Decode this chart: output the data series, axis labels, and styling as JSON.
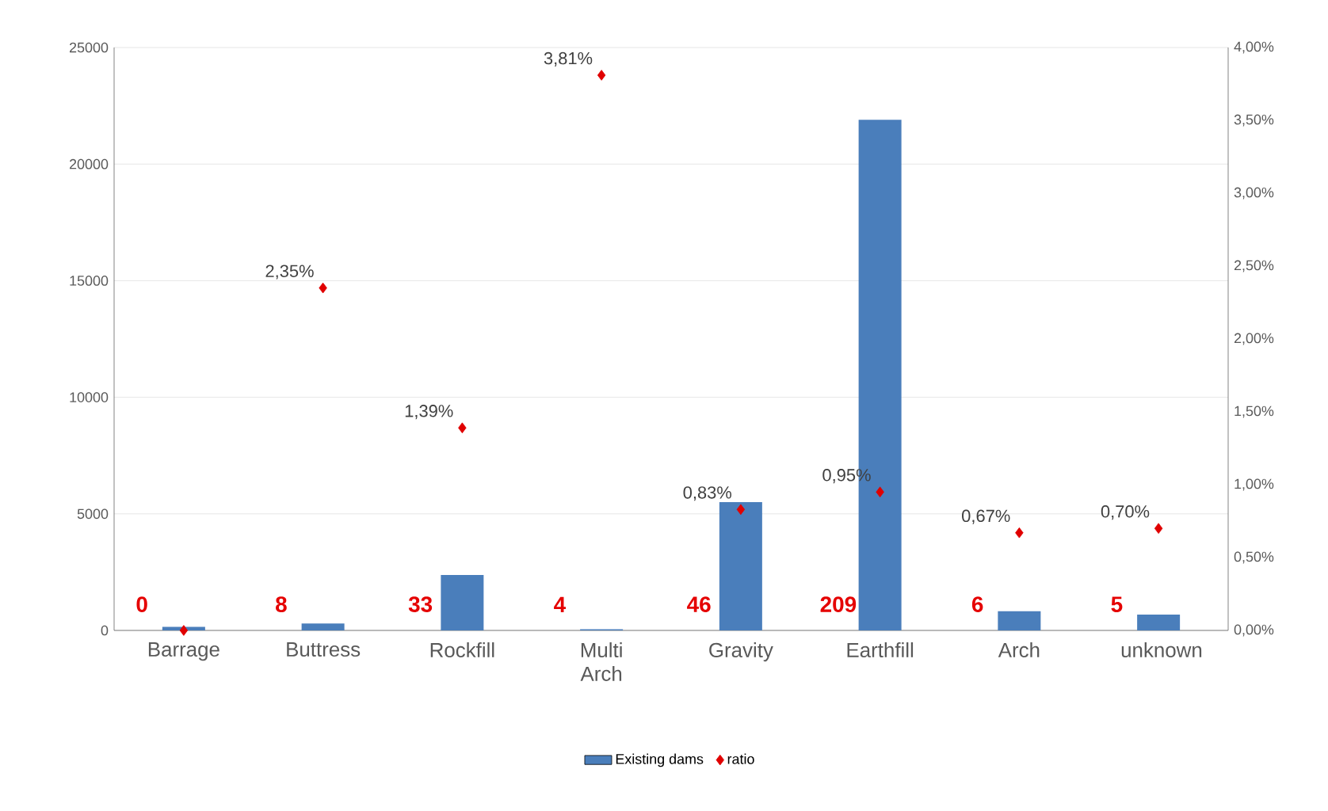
{
  "chart_data": {
    "type": "bar",
    "categories": [
      "Barrage",
      "Buttress",
      "Rockfill",
      "Multi Arch",
      "Gravity",
      "Earthfill",
      "Arch",
      "unknown"
    ],
    "series": [
      {
        "name": "Existing dams",
        "color": "#4a7ebb",
        "values": [
          150,
          300,
          2380,
          50,
          5500,
          21900,
          820,
          680
        ]
      },
      {
        "name": "ratio",
        "type": "scatter",
        "axis": "y2",
        "marker": "diamond",
        "color": "#e00000",
        "values": [
          0,
          2.35,
          1.39,
          3.81,
          0.83,
          0.95,
          0.67,
          0.7
        ],
        "value_labels": [
          null,
          "2,35%",
          "1,39%",
          "3,81%",
          "0,83%",
          "0,95%",
          "0,67%",
          "0,70%"
        ]
      }
    ],
    "ylim": [
      0,
      25000
    ],
    "yticks": [
      0,
      5000,
      10000,
      15000,
      20000,
      25000
    ],
    "y2lim": [
      0,
      4
    ],
    "y2ticks": [
      {
        "value": 0,
        "label": "0,00%"
      },
      {
        "value": 0.5,
        "label": "0,50%"
      },
      {
        "value": 1,
        "label": "1,00%"
      },
      {
        "value": 1.5,
        "label": "1,50%"
      },
      {
        "value": 2,
        "label": "2,00%"
      },
      {
        "value": 2.5,
        "label": "2,50%"
      },
      {
        "value": 3,
        "label": "3,00%"
      },
      {
        "value": 3.5,
        "label": "3,50%"
      },
      {
        "value": 4,
        "label": "4,00%"
      }
    ],
    "grid": "y",
    "legend": "bottom",
    "annotations": [
      "0",
      "8",
      "33",
      "4",
      "46",
      "209",
      "6",
      "5"
    ]
  }
}
